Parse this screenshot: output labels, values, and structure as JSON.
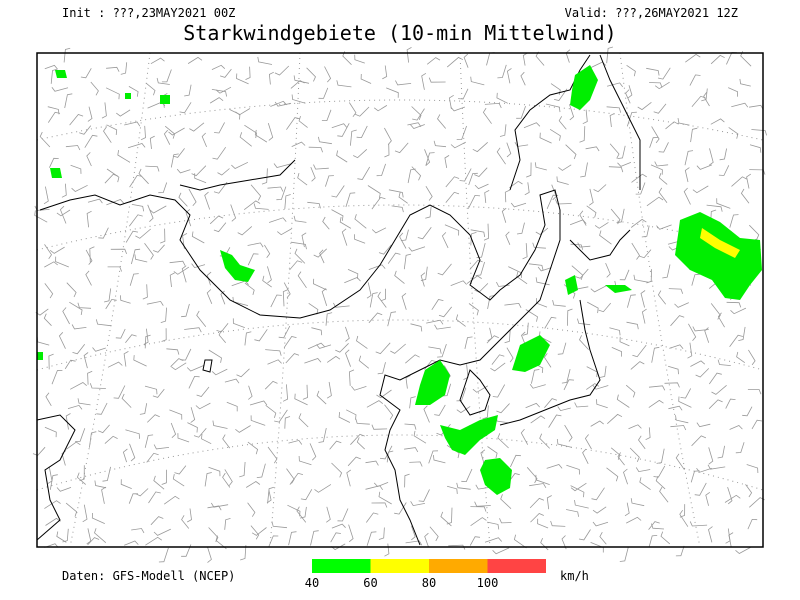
{
  "header": {
    "init": "Init : ???,23MAY2021 00Z",
    "valid": "Valid: ???,26MAY2021 12Z",
    "title": "Starkwindgebiete (10-min Mittelwind)"
  },
  "footer": {
    "source": "Daten: GFS-Modell (NCEP)"
  },
  "legend": {
    "ticks": [
      40,
      60,
      80,
      100
    ],
    "colors": [
      "#00ff00",
      "#ffff00",
      "#ffaa00",
      "#ff4444"
    ],
    "unit": "km/h"
  }
}
